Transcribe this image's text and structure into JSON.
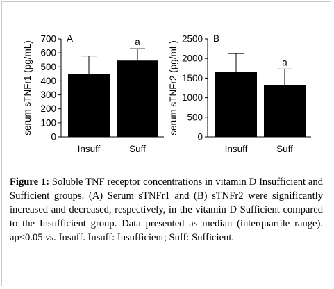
{
  "figure": {
    "caption": {
      "label": "Figure 1:",
      "text_1": " Soluble TNF receptor concentrations in vitamin D Insufficient and Sufficient groups. (A) Serum sTNFr1 and (B) sTNFr2 were significantly increased and decreased, respectively, in the vitamin D Sufficient compared to the Insufficient group. Data presented as median (interquartile range). ap<0.05 ",
      "italic": "vs.",
      "text_2": " Insuff. Insuff: Insufficient; Suff: Sufficient."
    },
    "colors": {
      "bar": "#000000",
      "axis": "#000000",
      "frame": "#c8c8c8"
    }
  },
  "chart_data": [
    {
      "type": "bar",
      "panel": "A",
      "categories": [
        "Insuff",
        "Suff"
      ],
      "values": [
        450,
        545
      ],
      "error_upper": [
        578,
        630
      ],
      "annotations": [
        "",
        "a"
      ],
      "ylabel": "serum sTNFr1 (pg/mL)",
      "ylim": [
        0,
        700
      ],
      "yticks": [
        0,
        100,
        200,
        300,
        400,
        500,
        600,
        700
      ],
      "ytick_labels": [
        "0",
        "100",
        "200",
        "300",
        "400",
        "500",
        "600",
        "700"
      ],
      "grid": false
    },
    {
      "type": "bar",
      "panel": "B",
      "categories": [
        "Insuff",
        "Suff"
      ],
      "values": [
        1665,
        1315
      ],
      "error_upper": [
        2125,
        1730
      ],
      "annotations": [
        "",
        "a"
      ],
      "ylabel": "serum sTNFr2 (pg/mL)",
      "ylim": [
        0,
        2500
      ],
      "yticks": [
        0,
        500,
        1000,
        1500,
        2000,
        2500
      ],
      "ytick_labels": [
        "0",
        "500",
        "1000",
        "1500",
        "2000",
        "2500"
      ],
      "grid": false
    }
  ]
}
